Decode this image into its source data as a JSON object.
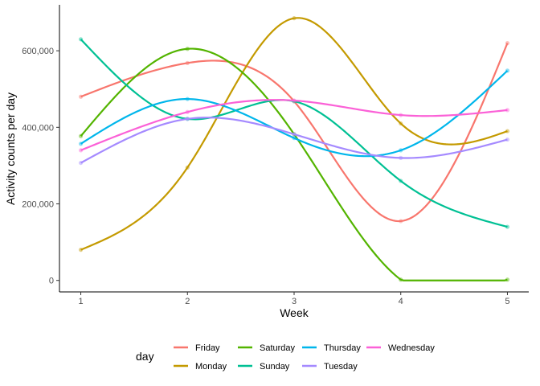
{
  "chart_data": {
    "type": "line",
    "xlabel": "Week",
    "ylabel": "Activity counts per day",
    "x": [
      1,
      2,
      3,
      4,
      5
    ],
    "xlim": [
      0.8,
      5.2
    ],
    "ylim": [
      -30000,
      720000
    ],
    "yticks": [
      0,
      200000,
      400000,
      600000
    ],
    "ytick_labels": [
      "0",
      "200,000",
      "400,000",
      "600,000"
    ],
    "xtick_labels": [
      "1",
      "2",
      "3",
      "4",
      "5"
    ],
    "grid": false,
    "legend": {
      "title": "day",
      "placement": "bottom",
      "layout": "2 rows x 4 columns",
      "order": [
        "Friday",
        "Monday",
        "Saturday",
        "Sunday",
        "Thursday",
        "Tuesday",
        "Wednesday"
      ]
    },
    "series": [
      {
        "name": "Friday",
        "color": "#F8766D",
        "values": [
          480000,
          568000,
          468000,
          155000,
          620000
        ]
      },
      {
        "name": "Monday",
        "color": "#C49A00",
        "values": [
          80000,
          295000,
          685000,
          410000,
          390000
        ]
      },
      {
        "name": "Saturday",
        "color": "#53B400",
        "values": [
          377000,
          605000,
          382000,
          2000,
          2000
        ]
      },
      {
        "name": "Sunday",
        "color": "#00C094",
        "values": [
          630000,
          422000,
          468000,
          260000,
          140000
        ]
      },
      {
        "name": "Thursday",
        "color": "#00B6EB",
        "values": [
          357000,
          474000,
          372000,
          340000,
          548000
        ]
      },
      {
        "name": "Tuesday",
        "color": "#A58AFF",
        "values": [
          307000,
          422000,
          382000,
          320000,
          368000
        ]
      },
      {
        "name": "Wednesday",
        "color": "#FB61D7",
        "values": [
          340000,
          440000,
          470000,
          432000,
          445000
        ]
      }
    ]
  }
}
